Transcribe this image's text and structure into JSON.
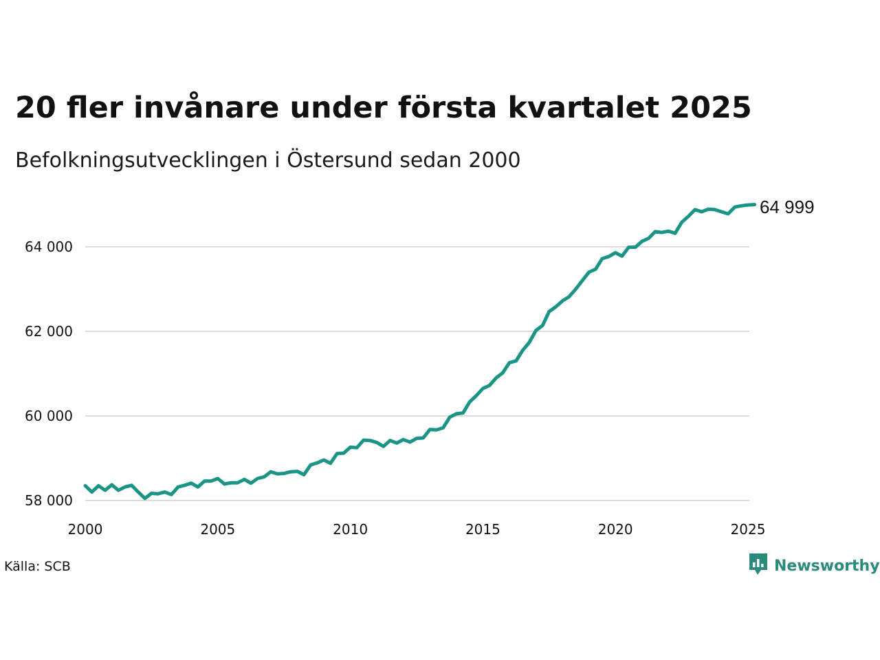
{
  "header": {
    "title": "20 fler invånare under första kvartalet 2025",
    "subtitle": "Befolkningsutvecklingen i Östersund sedan 2000"
  },
  "footer": {
    "source": "Källa: SCB",
    "brand": "Newsworthy",
    "brand_icon": "bar-chart-bubble-icon"
  },
  "colors": {
    "line": "#1a9484",
    "grid": "#dcdcdc",
    "brand": "#2a8a7c"
  },
  "chart_data": {
    "type": "line",
    "title": "20 fler invånare under första kvartalet 2025",
    "subtitle": "Befolkningsutvecklingen i Östersund sedan 2000",
    "xlabel": "",
    "ylabel": "",
    "xlim": [
      2000,
      2025.25
    ],
    "ylim": [
      58000,
      65500
    ],
    "x_ticks": [
      2000,
      2005,
      2010,
      2015,
      2020,
      2025
    ],
    "y_ticks": [
      58000,
      60000,
      62000,
      64000
    ],
    "y_tick_labels": [
      "58 000",
      "60 000",
      "62 000",
      "64 000"
    ],
    "grid": "horizontal",
    "end_label": "64 999",
    "series": [
      {
        "x": [
          2000.0,
          2000.25,
          2000.5,
          2000.75,
          2001.0,
          2001.25,
          2001.5,
          2001.75,
          2002.0,
          2002.25,
          2002.5,
          2002.75,
          2003.0,
          2003.25,
          2003.5,
          2003.75,
          2004.0,
          2004.25,
          2004.5,
          2004.75,
          2005.0,
          2005.25,
          2005.5,
          2005.75,
          2006.0,
          2006.25,
          2006.5,
          2006.75,
          2007.0,
          2007.25,
          2007.5,
          2007.75,
          2008.0,
          2008.25,
          2008.5,
          2008.75,
          2009.0,
          2009.25,
          2009.5,
          2009.75,
          2010.0,
          2010.25,
          2010.5,
          2010.75,
          2011.0,
          2011.25,
          2011.5,
          2011.75,
          2012.0,
          2012.25,
          2012.5,
          2012.75,
          2013.0,
          2013.25,
          2013.5,
          2013.75,
          2014.0,
          2014.25,
          2014.5,
          2014.75,
          2015.0,
          2015.25,
          2015.5,
          2015.75,
          2016.0,
          2016.25,
          2016.5,
          2016.75,
          2017.0,
          2017.25,
          2017.5,
          2017.75,
          2018.0,
          2018.25,
          2018.5,
          2018.75,
          2019.0,
          2019.25,
          2019.5,
          2019.75,
          2020.0,
          2020.25,
          2020.5,
          2020.75,
          2021.0,
          2021.25,
          2021.5,
          2021.75,
          2022.0,
          2022.25,
          2022.5,
          2022.75,
          2023.0,
          2023.25,
          2023.5,
          2023.75,
          2024.0,
          2024.25,
          2024.5,
          2024.75,
          2025.0,
          2025.25
        ],
        "y": [
          58350,
          58200,
          58350,
          58240,
          58370,
          58240,
          58320,
          58360,
          58200,
          58050,
          58170,
          58160,
          58200,
          58140,
          58320,
          58360,
          58410,
          58320,
          58460,
          58460,
          58520,
          58390,
          58420,
          58420,
          58500,
          58410,
          58520,
          58560,
          58680,
          58630,
          58640,
          58680,
          58690,
          58610,
          58840,
          58890,
          58960,
          58880,
          59110,
          59120,
          59260,
          59250,
          59430,
          59420,
          59370,
          59280,
          59420,
          59360,
          59440,
          59380,
          59470,
          59480,
          59680,
          59670,
          59720,
          59970,
          60050,
          60070,
          60330,
          60480,
          60650,
          60720,
          60900,
          61020,
          61260,
          61300,
          61550,
          61740,
          62020,
          62140,
          62470,
          62580,
          62720,
          62820,
          63000,
          63200,
          63400,
          63470,
          63720,
          63770,
          63860,
          63780,
          63990,
          63990,
          64130,
          64200,
          64360,
          64340,
          64370,
          64320,
          64580,
          64720,
          64880,
          64830,
          64890,
          64880,
          64830,
          64780,
          64940,
          64970,
          64990,
          64999
        ]
      }
    ]
  }
}
